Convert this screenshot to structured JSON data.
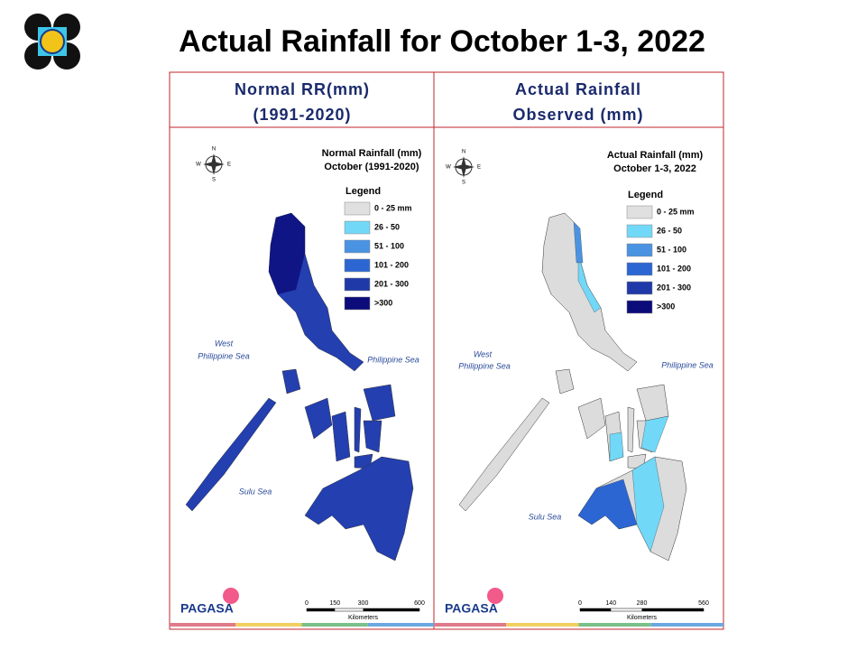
{
  "title": "Actual Rainfall for October 1-3, 2022",
  "logo_text": "PAGASA",
  "panels": [
    {
      "header": [
        "Normal RR(mm)",
        "(1991-2020)"
      ],
      "map_title": [
        "Normal Rainfall (mm)",
        "October (1991-2020)"
      ],
      "compass": [
        "N",
        "W",
        "E",
        "S"
      ],
      "legend": {
        "title": "Legend",
        "items": [
          {
            "label": "0 - 25 mm",
            "color": "#e0e0e0"
          },
          {
            "label": "26 - 50",
            "color": "#72d8f7"
          },
          {
            "label": "51 - 100",
            "color": "#4a93e2"
          },
          {
            "label": "101 - 200",
            "color": "#2c66d3"
          },
          {
            "label": "201 - 300",
            "color": "#1f3aa8"
          },
          {
            "label": ">300",
            "color": "#0b0b7a"
          }
        ]
      },
      "labels": [
        "West",
        "Philippine Sea",
        "Philippine Sea",
        "Sulu Sea"
      ],
      "scale": {
        "ticks": [
          0,
          150,
          300,
          600
        ],
        "unit": "Kilometers"
      }
    },
    {
      "header": [
        "Actual Rainfall",
        "Observed (mm)"
      ],
      "map_title": [
        "Actual Rainfall (mm)",
        "October 1-3, 2022"
      ],
      "compass": [
        "N",
        "W",
        "E",
        "S"
      ],
      "legend": {
        "title": "Legend",
        "items": [
          {
            "label": "0 - 25 mm",
            "color": "#e0e0e0"
          },
          {
            "label": "26 - 50",
            "color": "#72d8f7"
          },
          {
            "label": "51 - 100",
            "color": "#4a93e2"
          },
          {
            "label": "101 - 200",
            "color": "#2c66d3"
          },
          {
            "label": "201 - 300",
            "color": "#1f3aa8"
          },
          {
            "label": ">300",
            "color": "#0b0b7a"
          }
        ]
      },
      "labels": [
        "West",
        "Philippine Sea",
        "Philippine Sea",
        "Sulu Sea"
      ],
      "scale": {
        "ticks": [
          0,
          140,
          280,
          560
        ],
        "unit": "Kilometers"
      }
    }
  ]
}
